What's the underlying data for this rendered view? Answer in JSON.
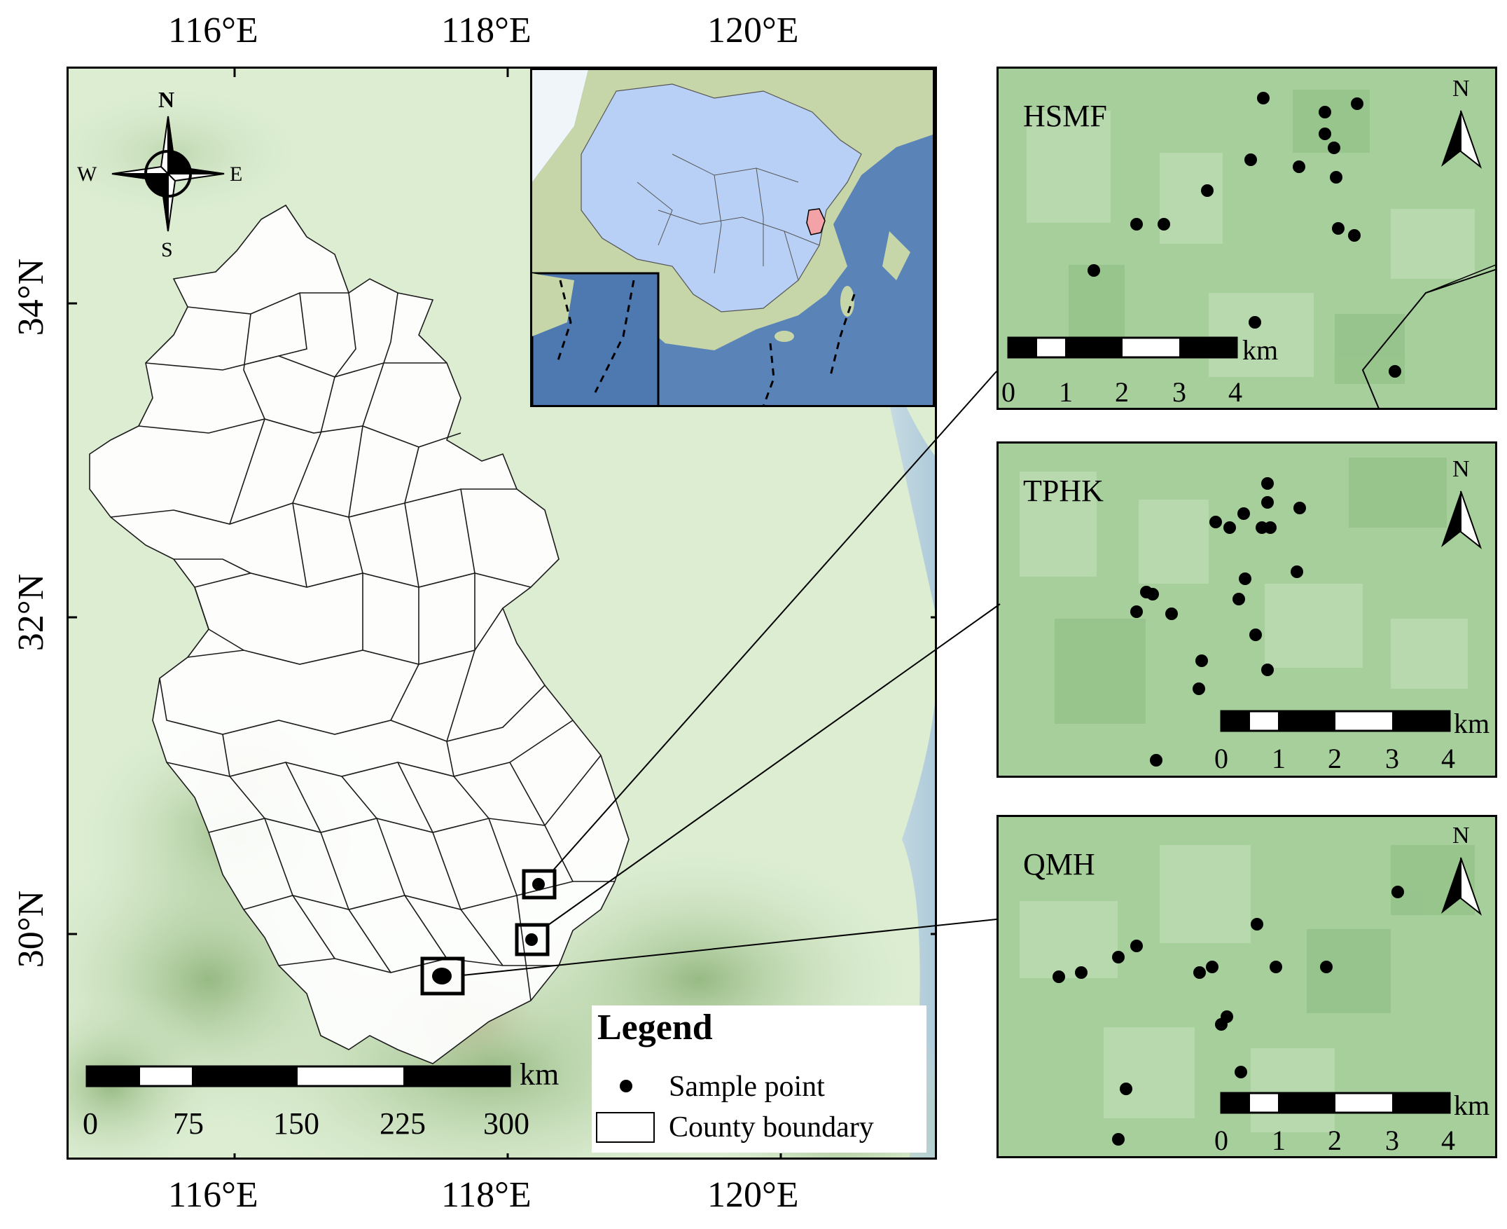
{
  "main_map": {
    "lon_ticks": [
      "116°E",
      "118°E",
      "120°E"
    ],
    "lat_ticks": [
      "34°N",
      "32°N",
      "30°N"
    ],
    "compass": {
      "n": "N",
      "s": "S",
      "e": "E",
      "w": "W"
    },
    "scalebar": {
      "labels": [
        "0",
        "75",
        "150",
        "225",
        "300"
      ],
      "unit": "km"
    }
  },
  "legend": {
    "title": "Legend",
    "items": [
      {
        "label": "Sample point",
        "symbol": "dot-icon"
      },
      {
        "label": "County boundary",
        "symbol": "rectangle-icon"
      }
    ]
  },
  "panels": [
    {
      "id": "hsmf",
      "title": "HSMF",
      "north": "N",
      "scale_labels": [
        "0",
        "1",
        "2",
        "3",
        "4"
      ],
      "scale_unit": "km"
    },
    {
      "id": "tphk",
      "title": "TPHK",
      "north": "N",
      "scale_labels": [
        "0",
        "1",
        "2",
        "3",
        "4"
      ],
      "scale_unit": "km"
    },
    {
      "id": "qmh",
      "title": "QMH",
      "north": "N",
      "scale_labels": [
        "0",
        "1",
        "2",
        "3",
        "4"
      ],
      "scale_unit": "km"
    }
  ],
  "colors": {
    "terrain_base": "#dcedd2",
    "terrain_mountain": "#9fbf8a",
    "sea": "#a9c6e4",
    "inset_land": "#b8d0f5",
    "highlight_province": "#f3a3a7",
    "panel_green": "#9fcb95"
  }
}
